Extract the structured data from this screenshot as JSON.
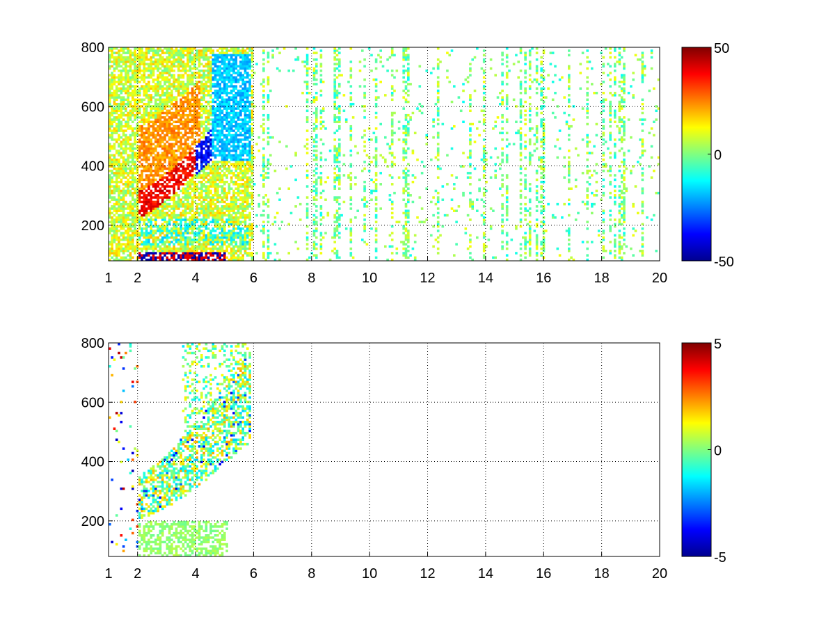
{
  "chart_data": [
    {
      "type": "heatmap",
      "title": "",
      "xlabel": "",
      "ylabel": "",
      "xlim": [
        1,
        20
      ],
      "ylim": [
        80,
        800
      ],
      "grid": true,
      "x_ticks": [
        "1",
        "2",
        "4",
        "6",
        "8",
        "10",
        "12",
        "14",
        "16",
        "18",
        "20"
      ],
      "x_tick_values": [
        1,
        2,
        4,
        6,
        8,
        10,
        12,
        14,
        16,
        18,
        20
      ],
      "y_ticks": [
        "200",
        "400",
        "600",
        "800"
      ],
      "y_tick_values": [
        200,
        400,
        600,
        800
      ],
      "colorbar": {
        "min": -50,
        "max": 50,
        "ticks": [
          "50",
          "0",
          "-50"
        ],
        "tick_values": [
          50,
          0,
          -50
        ],
        "colormap": "jet"
      },
      "features": [
        {
          "x": [
            2.0,
            4.0
          ],
          "y": [
            270,
            470
          ],
          "value": 40,
          "note": ""
        },
        {
          "x": [
            4.0,
            5.5
          ],
          "y": [
            250,
            520
          ],
          "value": -45,
          "note": ""
        },
        {
          "x": [
            1.0,
            6.0
          ],
          "y": [
            80,
            800
          ],
          "value": 8,
          "note": ""
        },
        {
          "x": [
            2.0,
            5.0
          ],
          "y": [
            80,
            110
          ],
          "value": -45,
          "note": ""
        }
      ]
    },
    {
      "type": "heatmap",
      "title": "",
      "xlabel": "",
      "ylabel": "",
      "xlim": [
        1,
        20
      ],
      "ylim": [
        80,
        800
      ],
      "grid": true,
      "x_ticks": [
        "1",
        "2",
        "4",
        "6",
        "8",
        "10",
        "12",
        "14",
        "16",
        "18",
        "20"
      ],
      "x_tick_values": [
        1,
        2,
        4,
        6,
        8,
        10,
        12,
        14,
        16,
        18,
        20
      ],
      "y_ticks": [
        "200",
        "400",
        "600",
        "800"
      ],
      "y_tick_values": [
        200,
        400,
        600,
        800
      ],
      "colorbar": {
        "min": -5,
        "max": 5,
        "ticks": [
          "5",
          "0",
          "-5"
        ],
        "tick_values": [
          5,
          0,
          -5
        ],
        "colormap": "jet"
      },
      "features": [
        {
          "x": [
            2.0,
            5.8
          ],
          "y": [
            260,
            600
          ],
          "value": 0.5,
          "note": ""
        },
        {
          "x": [
            2.0,
            5.0
          ],
          "y": [
            80,
            200
          ],
          "value": 0.2,
          "note": ""
        },
        {
          "x": [
            3.5,
            5.8
          ],
          "y": [
            300,
            800
          ],
          "value": -2,
          "note": ""
        }
      ]
    }
  ]
}
